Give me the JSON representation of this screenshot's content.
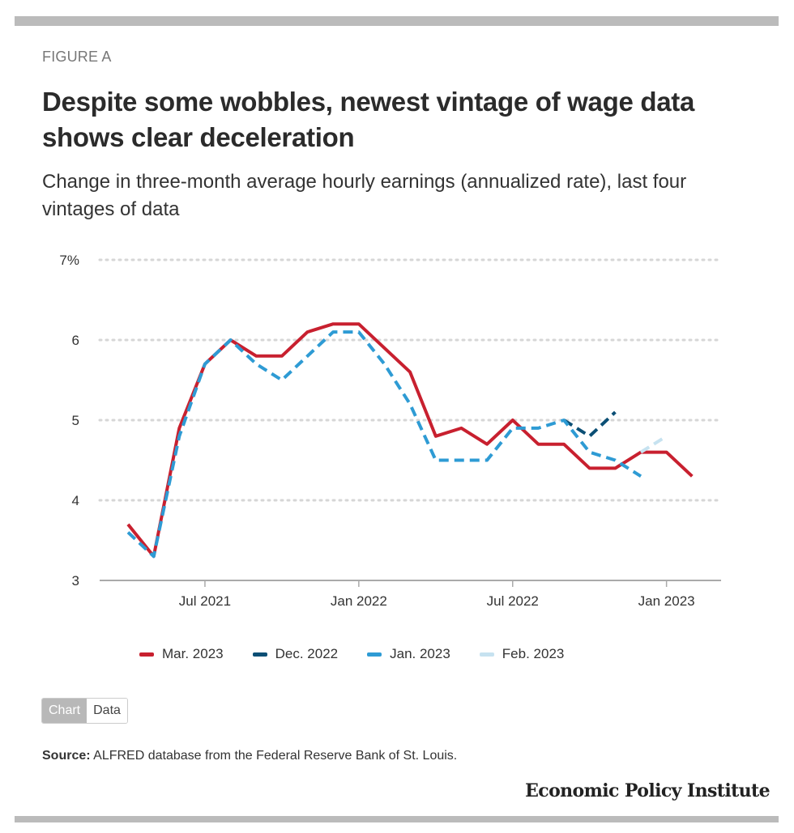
{
  "figure_label": "FIGURE A",
  "title": "Despite some wobbles, newest vintage of wage data shows clear deceleration",
  "subtitle": "Change in three-month average hourly earnings (annualized rate), last four vintages of data",
  "toggle": {
    "chart_label": "Chart",
    "data_label": "Data",
    "active": "Chart"
  },
  "source": {
    "label": "Source:",
    "text": "ALFRED database from the Federal Reserve Bank of St. Louis."
  },
  "brand": "Economic Policy Institute",
  "chart_data": {
    "type": "line",
    "title": "Despite some wobbles, newest vintage of wage data shows clear deceleration",
    "xlabel": "",
    "ylabel": "",
    "ylim": [
      3,
      7
    ],
    "yticks": [
      3,
      4,
      5,
      6,
      7
    ],
    "ytick_labels": [
      "3",
      "4",
      "5",
      "6",
      "7%"
    ],
    "xticks": [
      "Jul 2021",
      "Jan 2022",
      "Jul 2022",
      "Jan 2023"
    ],
    "grid": "horizontal-dotted",
    "legend_position": "bottom",
    "x": [
      "Apr 2021",
      "May 2021",
      "Jun 2021",
      "Jul 2021",
      "Aug 2021",
      "Sep 2021",
      "Oct 2021",
      "Nov 2021",
      "Dec 2021",
      "Jan 2022",
      "Feb 2022",
      "Mar 2022",
      "Apr 2022",
      "May 2022",
      "Jun 2022",
      "Jul 2022",
      "Aug 2022",
      "Sep 2022",
      "Oct 2022",
      "Nov 2022",
      "Dec 2022",
      "Jan 2023",
      "Feb 2023"
    ],
    "series": [
      {
        "name": "Mar. 2023",
        "color": "#c8202f",
        "style": "solid",
        "values": [
          3.7,
          3.3,
          4.9,
          5.7,
          6.0,
          5.8,
          5.8,
          6.1,
          6.2,
          6.2,
          5.9,
          5.6,
          4.8,
          4.9,
          4.7,
          5.0,
          4.7,
          4.7,
          4.4,
          4.4,
          4.6,
          4.6,
          4.3
        ]
      },
      {
        "name": "Dec. 2022",
        "color": "#0b4f75",
        "style": "dashed",
        "values": [
          null,
          null,
          null,
          null,
          null,
          null,
          null,
          null,
          null,
          null,
          null,
          null,
          null,
          null,
          null,
          null,
          null,
          5.0,
          4.8,
          5.1,
          null,
          null,
          null
        ]
      },
      {
        "name": "Jan. 2023",
        "color": "#2e9bd4",
        "style": "dashed",
        "values": [
          3.6,
          3.3,
          4.8,
          5.7,
          6.0,
          5.7,
          5.5,
          5.8,
          6.1,
          6.1,
          5.7,
          5.2,
          4.5,
          4.5,
          4.5,
          4.9,
          4.9,
          5.0,
          4.6,
          4.5,
          4.3,
          null,
          null
        ]
      },
      {
        "name": "Feb. 2023",
        "color": "#c6e2f0",
        "style": "dashed",
        "values": [
          null,
          null,
          null,
          null,
          null,
          null,
          null,
          null,
          null,
          null,
          null,
          null,
          null,
          null,
          null,
          null,
          null,
          null,
          null,
          null,
          4.6,
          4.8,
          null
        ]
      }
    ]
  }
}
